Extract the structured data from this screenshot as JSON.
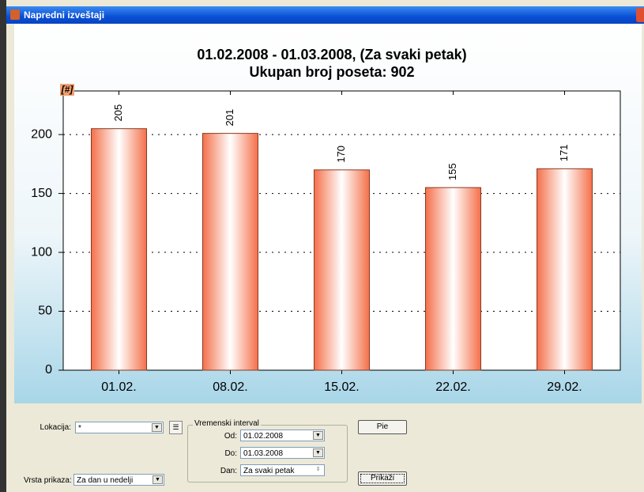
{
  "window": {
    "title": "Napredni izveštaji"
  },
  "chart_data": {
    "type": "bar",
    "title": "01.02.2008 - 01.03.2008, (Za svaki petak)",
    "subtitle": "Ukupan broj poseta: 902",
    "y_label": "[#]",
    "categories": [
      "01.02.",
      "08.02.",
      "15.02.",
      "22.02.",
      "29.02."
    ],
    "values": [
      205,
      201,
      170,
      155,
      171
    ],
    "color": "#f4704a",
    "ylim": [
      0,
      237
    ],
    "yticks": [
      0,
      50,
      100,
      150,
      200
    ],
    "grid": true
  },
  "form": {
    "location": {
      "label": "Lokacija:",
      "value": "*"
    },
    "view": {
      "label": "Vrsta prikaza:",
      "value": "Za dan u nedelji"
    },
    "interval": {
      "title": "Vremenski interval",
      "from": {
        "label": "Od:",
        "value": "01.02.2008"
      },
      "to": {
        "label": "Do:",
        "value": "01.03.2008"
      },
      "day": {
        "label": "Dan:",
        "value": "Za svaki petak"
      }
    },
    "buttons": {
      "pie": "Pie",
      "show": "Prikaži"
    }
  }
}
